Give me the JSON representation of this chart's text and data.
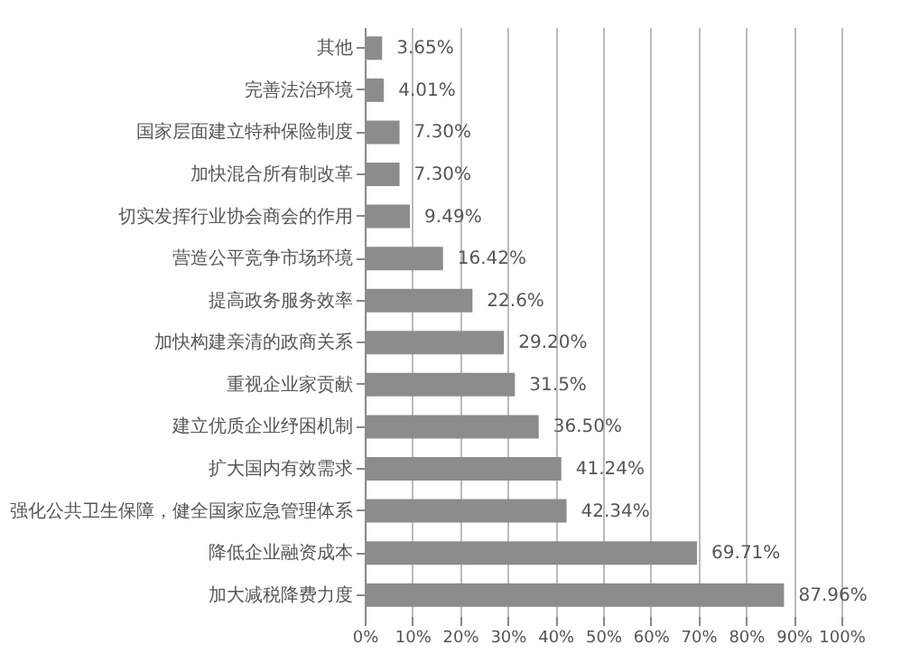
{
  "chart_data": {
    "type": "bar",
    "orientation": "horizontal",
    "categories": [
      "其他",
      "完善法治环境",
      "国家层面建立特种保险制度",
      "加快混合所有制改革",
      "切实发挥行业协会商会的作用",
      "营造公平竞争市场环境",
      "提高政务服务效率",
      "加快构建亲清的政商关系",
      "重视企业家贡献",
      "建立优质企业纾困机制",
      "扩大国内有效需求",
      "强化公共卫生保障，健全国家应急管理体系",
      "降低企业融资成本",
      "加大减税降费力度"
    ],
    "values": [
      3.65,
      4.01,
      7.3,
      7.3,
      9.49,
      16.42,
      22.6,
      29.2,
      31.5,
      36.5,
      41.24,
      42.34,
      69.71,
      87.96
    ],
    "value_labels": [
      "3.65%",
      "4.01%",
      "7.30%",
      "7.30%",
      "9.49%",
      "16.42%",
      "22.6%",
      "29.20%",
      "31.5%",
      "36.50%",
      "41.24%",
      "42.34%",
      "69.71%",
      "87.96%"
    ],
    "color": "#8c8c8c",
    "xlim": [
      0,
      100
    ],
    "xticks": [
      {
        "value": 0,
        "label": "0%"
      },
      {
        "value": 10,
        "label": "10%"
      },
      {
        "value": 20,
        "label": "20%"
      },
      {
        "value": 30,
        "label": "30%"
      },
      {
        "value": 40,
        "label": "40%"
      },
      {
        "value": 50,
        "label": "50%"
      },
      {
        "value": 60,
        "label": "60%"
      },
      {
        "value": 70,
        "label": "70%"
      },
      {
        "value": 80,
        "label": "80%"
      },
      {
        "value": 90,
        "label": "90%"
      },
      {
        "value": 100,
        "label": "100%"
      }
    ],
    "grid": "x"
  }
}
